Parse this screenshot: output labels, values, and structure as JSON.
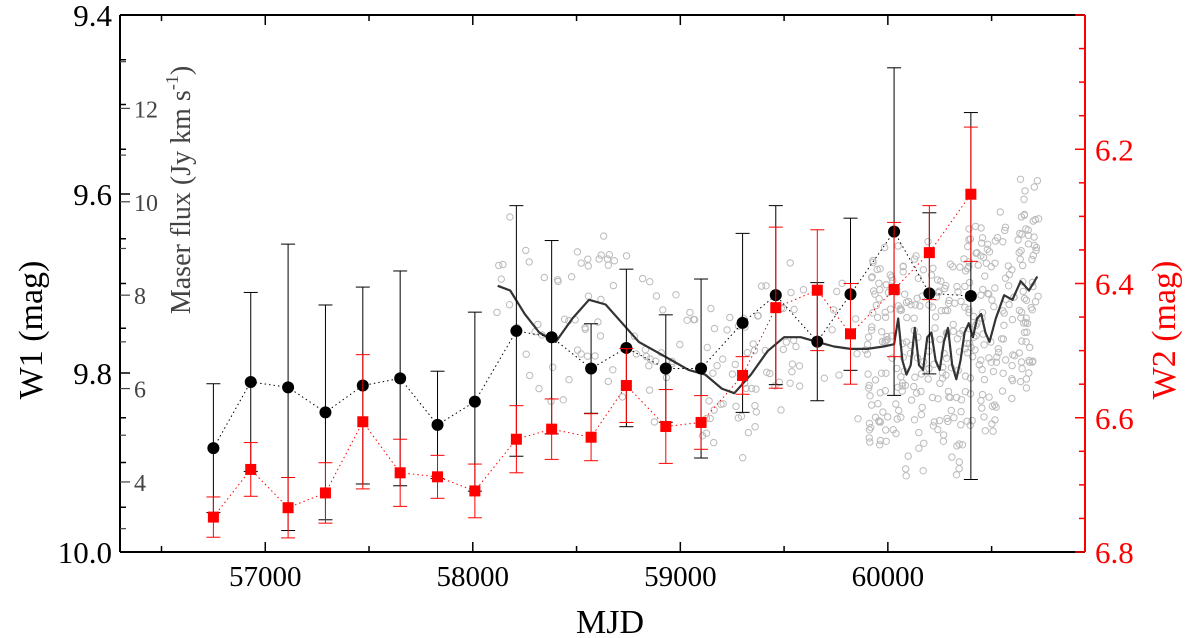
{
  "chart_data": {
    "type": "scatter",
    "xlabel": "MJD",
    "ylabel_left": "W1 (mag)",
    "ylabel_right": "W2 (mag)",
    "ylabel_inner": "Maser flux (Jy km s",
    "ylabel_inner_sup": "-1",
    "ylabel_inner_close": ")",
    "x_range": [
      56300,
      60950
    ],
    "x_ticks": [
      57000,
      58000,
      59000,
      60000
    ],
    "x_tick_labels": [
      "57000",
      "58000",
      "59000",
      "60000"
    ],
    "y_left_range": [
      10.0,
      9.4
    ],
    "y_left_ticks": [
      9.4,
      9.6,
      9.8,
      10.0
    ],
    "y_left_tick_labels": [
      "9.4",
      "9.6",
      "9.8",
      "10.0"
    ],
    "y_right_range": [
      6.8,
      6.0
    ],
    "y_right_ticks": [
      6.2,
      6.4,
      6.6,
      6.8
    ],
    "y_right_tick_labels": [
      "6.2",
      "6.4",
      "6.6",
      "6.8"
    ],
    "y_inner_range": [
      2.5,
      14.0
    ],
    "y_inner_ticks": [
      4,
      6,
      8,
      10,
      12
    ],
    "y_inner_tick_labels": [
      "4",
      "6",
      "8",
      "10",
      "12"
    ],
    "colors": {
      "w1": "#000000",
      "w2": "#ff0000",
      "maser_points": "#bbbbbb",
      "maser_line": "#333333",
      "axis": "#000000",
      "inner_axis": "#444444"
    },
    "series": [
      {
        "name": "W1",
        "axis": "left",
        "marker": "circle",
        "x": [
          56750,
          56930,
          57110,
          57290,
          57470,
          57650,
          57830,
          58010,
          58210,
          58380,
          58570,
          58740,
          58930,
          59100,
          59300,
          59460,
          59660,
          59820,
          60030,
          60200,
          60400
        ],
        "y": [
          9.884,
          9.81,
          9.816,
          9.844,
          9.814,
          9.806,
          9.858,
          9.832,
          9.753,
          9.76,
          9.795,
          9.772,
          9.795,
          9.795,
          9.744,
          9.713,
          9.765,
          9.712,
          9.642,
          9.711,
          9.714
        ],
        "err": [
          0.072,
          0.1,
          0.16,
          0.12,
          0.11,
          0.12,
          0.06,
          0.1,
          0.14,
          0.108,
          0.05,
          0.088,
          0.06,
          0.1,
          0.1,
          0.1,
          0.066,
          0.085,
          0.183,
          0.09,
          0.205
        ]
      },
      {
        "name": "W2",
        "axis": "right",
        "marker": "square",
        "x": [
          56750,
          56930,
          57110,
          57290,
          57470,
          57650,
          57830,
          58010,
          58210,
          58380,
          58570,
          58740,
          58930,
          59100,
          59300,
          59460,
          59660,
          59820,
          60030,
          60200,
          60400
        ],
        "y": [
          6.748,
          6.677,
          6.734,
          6.712,
          6.606,
          6.682,
          6.688,
          6.709,
          6.632,
          6.617,
          6.629,
          6.552,
          6.613,
          6.607,
          6.537,
          6.436,
          6.41,
          6.475,
          6.409,
          6.354,
          6.267
        ],
        "err": [
          0.03,
          0.04,
          0.045,
          0.045,
          0.1,
          0.05,
          0.032,
          0.04,
          0.05,
          0.045,
          0.035,
          0.055,
          0.055,
          0.04,
          0.028,
          0.12,
          0.09,
          0.075,
          0.1,
          0.07,
          0.1
        ]
      },
      {
        "name": "Maser flux (smoothed)",
        "axis": "inner",
        "type": "line",
        "x": [
          58120,
          58180,
          58250,
          58320,
          58400,
          58480,
          58560,
          58640,
          58720,
          58800,
          58880,
          58960,
          59040,
          59120,
          59200,
          59260,
          59340,
          59420,
          59500,
          59580,
          59660,
          59740,
          59820,
          59900,
          59980,
          60030,
          60050,
          60070,
          60090,
          60110,
          60130,
          60150,
          60170,
          60190,
          60210,
          60230,
          60250,
          60270,
          60290,
          60310,
          60330,
          60350,
          60370,
          60390,
          60410,
          60430,
          60450,
          60470,
          60490,
          60520,
          60560,
          60600,
          60640,
          60680,
          60720
        ],
        "y": [
          8.2,
          8.1,
          7.6,
          7.2,
          7.0,
          7.5,
          7.9,
          7.8,
          7.4,
          7.0,
          6.8,
          6.6,
          6.4,
          6.3,
          6.0,
          5.9,
          6.3,
          6.8,
          7.1,
          7.1,
          7.0,
          6.9,
          6.85,
          6.85,
          6.9,
          6.95,
          7.5,
          6.6,
          6.3,
          6.5,
          7.3,
          6.5,
          6.4,
          7.1,
          7.2,
          6.6,
          6.4,
          7.0,
          7.3,
          6.5,
          6.2,
          6.6,
          7.2,
          7.4,
          7.1,
          7.5,
          7.6,
          7.2,
          7.0,
          7.5,
          8.0,
          7.9,
          8.3,
          8.1,
          8.4
        ]
      }
    ]
  }
}
